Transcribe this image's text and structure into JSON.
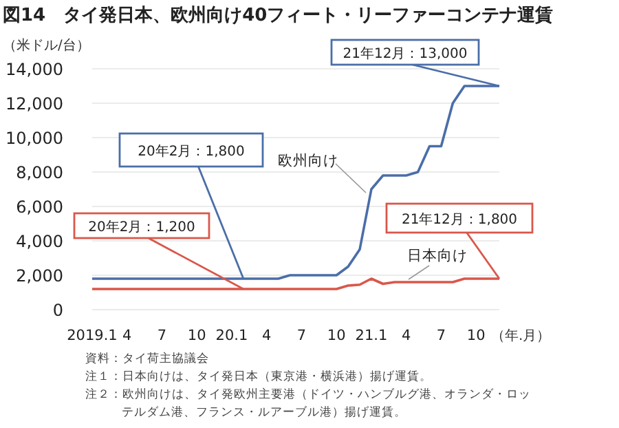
{
  "chart_data": {
    "type": "line",
    "title": "図14　タイ発日本、欧州向け40フィート・リーファーコンテナ運賃",
    "ylabel": "（米ドル/台）",
    "xlabel": "（年.月）",
    "x": [
      "2019-01",
      "2019-02",
      "2019-03",
      "2019-04",
      "2019-05",
      "2019-06",
      "2019-07",
      "2019-08",
      "2019-09",
      "2019-10",
      "2019-11",
      "2019-12",
      "2020-01",
      "2020-02",
      "2020-03",
      "2020-04",
      "2020-05",
      "2020-06",
      "2020-07",
      "2020-08",
      "2020-09",
      "2020-10",
      "2020-11",
      "2020-12",
      "2021-01",
      "2021-02",
      "2021-03",
      "2021-04",
      "2021-05",
      "2021-06",
      "2021-07",
      "2021-08",
      "2021-09",
      "2021-10",
      "2021-11",
      "2021-12"
    ],
    "series": [
      {
        "name": "欧州向け",
        "color": "#4a6ea8",
        "values": [
          1800,
          1800,
          1800,
          1800,
          1800,
          1800,
          1800,
          1800,
          1800,
          1800,
          1800,
          1800,
          1800,
          1800,
          1800,
          1800,
          1800,
          2000,
          2000,
          2000,
          2000,
          2000,
          2500,
          3500,
          7000,
          7800,
          7800,
          7800,
          8000,
          9500,
          9500,
          12000,
          13000,
          13000,
          13000,
          13000
        ]
      },
      {
        "name": "日本向け",
        "color": "#d9574a",
        "values": [
          1200,
          1200,
          1200,
          1200,
          1200,
          1200,
          1200,
          1200,
          1200,
          1200,
          1200,
          1200,
          1200,
          1200,
          1200,
          1200,
          1200,
          1200,
          1200,
          1200,
          1200,
          1200,
          1400,
          1450,
          1800,
          1500,
          1600,
          1600,
          1600,
          1600,
          1600,
          1600,
          1800,
          1800,
          1800,
          1800
        ]
      }
    ],
    "xlim": [
      "2019-01",
      "2021-12"
    ],
    "xticks": [
      {
        "value": "2019-01",
        "label": "2019.1"
      },
      {
        "value": "2019-04",
        "label": "4"
      },
      {
        "value": "2019-07",
        "label": "7"
      },
      {
        "value": "2019-10",
        "label": "10"
      },
      {
        "value": "2020-01",
        "label": "20.1"
      },
      {
        "value": "2020-04",
        "label": "4"
      },
      {
        "value": "2020-07",
        "label": "7"
      },
      {
        "value": "2020-10",
        "label": "10"
      },
      {
        "value": "2021-01",
        "label": "21.1"
      },
      {
        "value": "2021-04",
        "label": "4"
      },
      {
        "value": "2021-07",
        "label": "7"
      },
      {
        "value": "2021-10",
        "label": "10"
      }
    ],
    "ylim": [
      0,
      14000
    ],
    "yticks": [
      0,
      {
        "value": 2000,
        "label": "2,000"
      },
      {
        "value": 4000,
        "label": "4,000"
      },
      {
        "value": 6000,
        "label": "6,000"
      },
      {
        "value": 8000,
        "label": "8,000"
      },
      {
        "value": 10000,
        "label": "10,000"
      },
      {
        "value": 12000,
        "label": "12,000"
      },
      {
        "value": 14000,
        "label": "14,000"
      }
    ],
    "grid": "y",
    "annotations": [
      {
        "text": "21年12月：13,000",
        "x": "2021-12",
        "y": 13000
      },
      {
        "text": "20年2月：1,800",
        "x": "2020-02",
        "y": 1800
      },
      {
        "text": "20年2月：1,200",
        "x": "2020-02",
        "y": 1200
      },
      {
        "text": "21年12月：1,800",
        "x": "2021-12",
        "y": 1800
      },
      "資料：タイ荷主協議会",
      "注１：日本向けは、タイ発日本（東京港・横浜港）揚げ運賃。",
      "注２：欧州向けは、タイ発欧州主要港（ドイツ・ハンブルグ港、オランダ・ロッテルダム港、フランス・ルアーブル港）揚げ運賃。"
    ]
  }
}
